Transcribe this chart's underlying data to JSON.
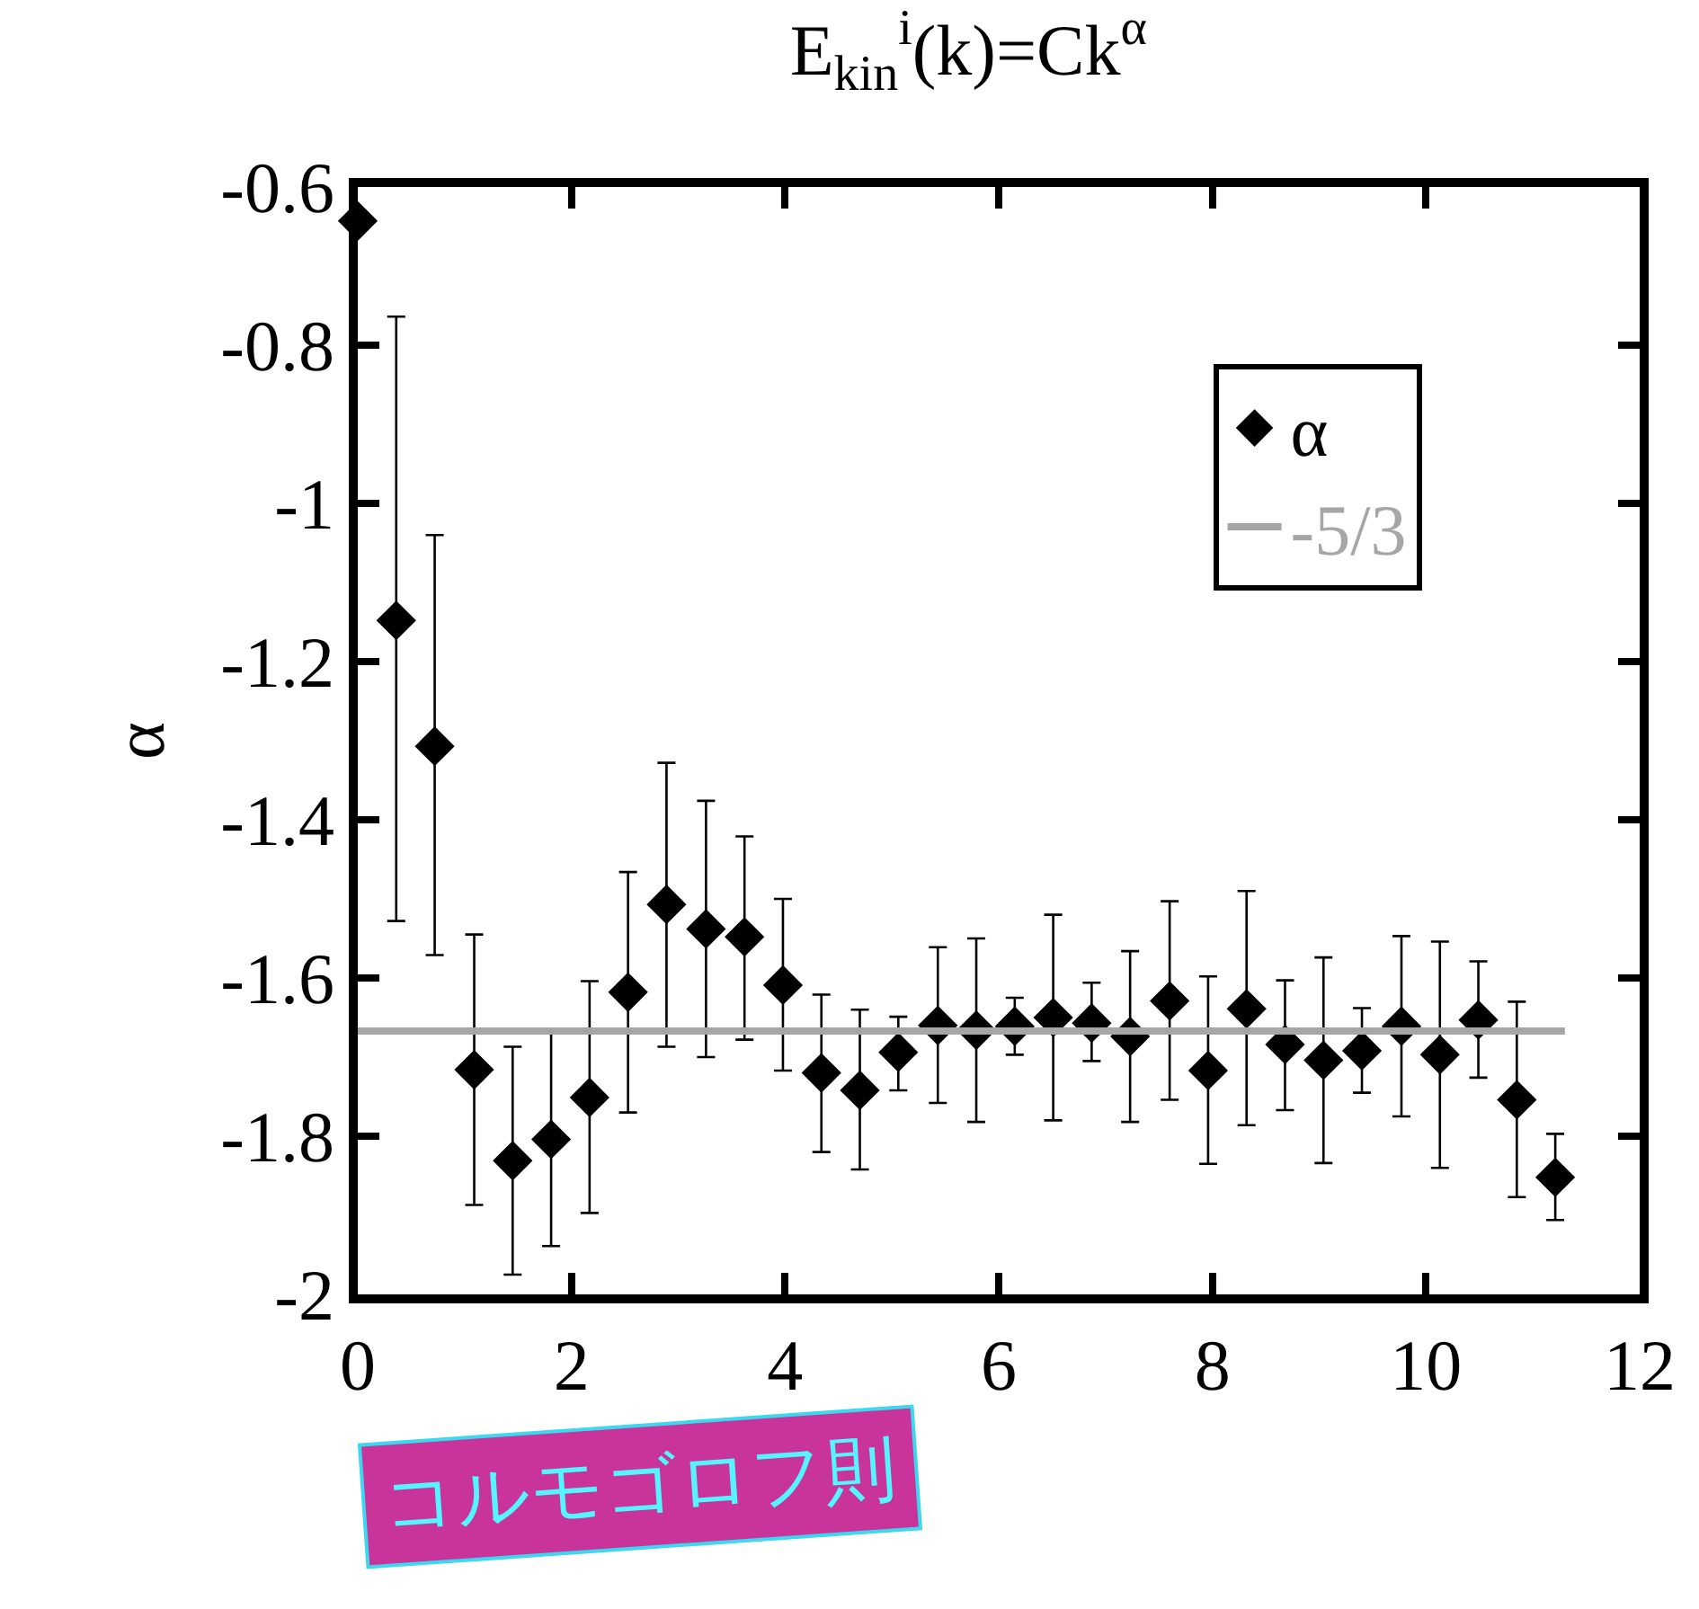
{
  "chart_data": {
    "type": "scatter",
    "title": "E$_{kin}$$^{i}$(k)=Ck$^{α}$",
    "ylabel": "α",
    "annotations": [
      "コルモゴロフ則"
    ],
    "xlim": [
      0,
      12
    ],
    "xticks": [
      0,
      2,
      4,
      6,
      8,
      10,
      12
    ],
    "ylim": [
      -2,
      -0.6
    ],
    "yticks": [
      -2,
      -1.8,
      -1.6,
      -1.4,
      -1.2,
      -1,
      -0.8,
      -0.6
    ],
    "grid": false,
    "legend": "top right",
    "series": [
      {
        "name": "α",
        "type": "scatter",
        "color": "#000000",
        "marker": "diamond",
        "x": [
          0,
          0.36,
          0.72,
          1.09,
          1.45,
          1.81,
          2.17,
          2.53,
          2.89,
          3.26,
          3.62,
          3.98,
          4.34,
          4.7,
          5.06,
          5.43,
          5.79,
          6.15,
          6.51,
          6.87,
          7.23,
          7.6,
          7.96,
          8.32,
          8.68,
          9.04,
          9.4,
          9.77,
          10.13,
          10.49,
          10.85,
          11.21
        ],
        "values": [
          -0.643,
          -1.148,
          -1.307,
          -1.716,
          -1.831,
          -1.804,
          -1.751,
          -1.618,
          -1.507,
          -1.538,
          -1.548,
          -1.609,
          -1.72,
          -1.742,
          -1.694,
          -1.66,
          -1.666,
          -1.661,
          -1.65,
          -1.657,
          -1.674,
          -1.629,
          -1.717,
          -1.639,
          -1.684,
          -1.704,
          -1.692,
          -1.661,
          -1.697,
          -1.653,
          -1.754,
          -1.852
        ],
        "errors": [
          null,
          [
            -1.528,
            -0.764
          ],
          [
            -1.571,
            -1.04
          ],
          [
            -1.887,
            -1.545
          ],
          [
            -1.975,
            -1.687
          ],
          [
            -1.939,
            -1.67
          ],
          [
            -1.897,
            -1.604
          ],
          [
            -1.77,
            -1.466
          ],
          [
            -1.687,
            -1.328
          ],
          [
            -1.7,
            -1.376
          ],
          [
            -1.678,
            -1.421
          ],
          [
            -1.717,
            -1.5
          ],
          [
            -1.82,
            -1.621
          ],
          [
            -1.842,
            -1.64
          ],
          [
            -1.742,
            -1.649
          ],
          [
            -1.758,
            -1.561
          ],
          [
            -1.782,
            -1.55
          ],
          [
            -1.697,
            -1.625
          ],
          [
            -1.78,
            -1.52
          ],
          [
            -1.705,
            -1.606
          ],
          [
            -1.782,
            -1.566
          ],
          [
            -1.754,
            -1.503
          ],
          [
            -1.835,
            -1.598
          ],
          [
            -1.786,
            -1.49
          ],
          [
            -1.767,
            -1.603
          ],
          [
            -1.834,
            -1.574
          ],
          [
            -1.745,
            -1.638
          ],
          [
            -1.775,
            -1.547
          ],
          [
            -1.84,
            -1.554
          ],
          [
            -1.726,
            -1.579
          ],
          [
            -1.877,
            -1.63
          ],
          [
            -1.906,
            -1.797
          ]
        ]
      },
      {
        "name": "-5/3",
        "type": "line",
        "color": "#a6a6a6",
        "line_style": "solid",
        "x": [
          0,
          11.3
        ],
        "values": [
          -1.667,
          -1.667
        ]
      }
    ]
  }
}
